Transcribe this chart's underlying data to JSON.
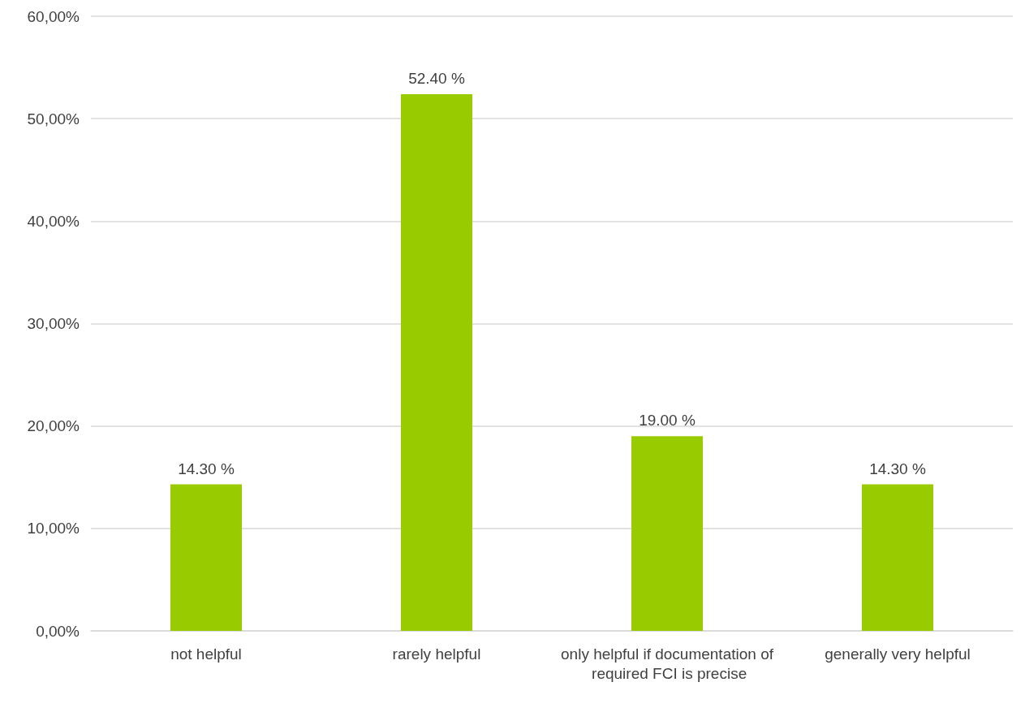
{
  "chart_data": {
    "type": "bar",
    "categories": [
      "not helpful",
      "rarely helpful",
      "only helpful if documentation of required FCI is precise",
      "generally very helpful"
    ],
    "values": [
      14.3,
      52.4,
      19.0,
      14.3
    ],
    "value_labels": [
      "14.30 %",
      "52.40 %",
      "19.00 %",
      "14.30 %"
    ],
    "color": "#99cc00",
    "ylim": [
      0,
      60
    ],
    "yticks": [
      {
        "value": 0,
        "label": "0,00%"
      },
      {
        "value": 10,
        "label": "10,00%"
      },
      {
        "value": 20,
        "label": "20,00%"
      },
      {
        "value": 30,
        "label": "30,00%"
      },
      {
        "value": 40,
        "label": "40,00%"
      },
      {
        "value": 50,
        "label": "50,00%"
      },
      {
        "value": 60,
        "label": "60,00%"
      }
    ],
    "grid": "y"
  }
}
